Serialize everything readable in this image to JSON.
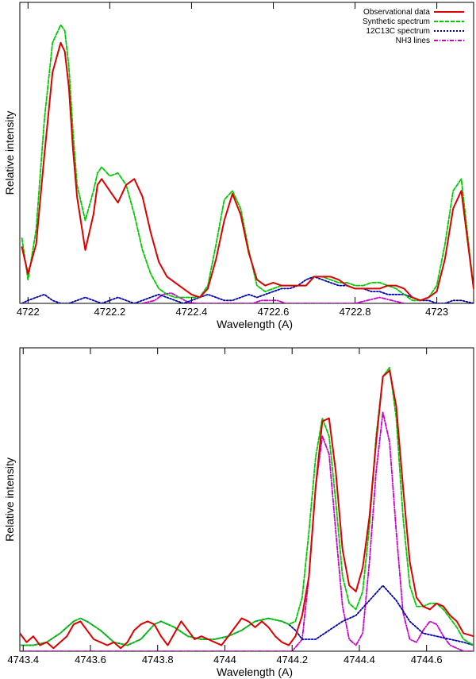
{
  "chart_data": [
    {
      "type": "line",
      "xlabel": "Wavelength (A)",
      "ylabel": "Relative intensity",
      "xlim": [
        4721.98,
        4723.09
      ],
      "ylim": [
        0,
        1.0
      ],
      "grid": false,
      "legend_position": "top-right",
      "xticks": [
        4722,
        4722.2,
        4722.4,
        4722.6,
        4722.8,
        4723
      ],
      "xtick_labels": [
        "4722",
        "4722.2",
        "4722.4",
        "4722.6",
        "4722.8",
        "4723"
      ],
      "legend": [
        "Observational data",
        "Synthetic spectrum",
        "12C13C spectrum",
        "NH3 lines"
      ],
      "series": [
        {
          "name": "Observational data",
          "color": "#dd0000",
          "dash": "solid",
          "x": [
            4721.985,
            4722.0,
            4722.02,
            4722.04,
            4722.06,
            4722.08,
            4722.09,
            4722.1,
            4722.11,
            4722.12,
            4722.14,
            4722.16,
            4722.17,
            4722.18,
            4722.2,
            4722.22,
            4722.24,
            4722.26,
            4722.28,
            4722.3,
            4722.32,
            4722.34,
            4722.36,
            4722.38,
            4722.4,
            4722.42,
            4722.44,
            4722.46,
            4722.48,
            4722.5,
            4722.52,
            4722.54,
            4722.56,
            4722.58,
            4722.6,
            4722.62,
            4722.64,
            4722.66,
            4722.68,
            4722.7,
            4722.72,
            4722.74,
            4722.76,
            4722.78,
            4722.8,
            4722.82,
            4722.84,
            4722.86,
            4722.88,
            4722.9,
            4722.92,
            4722.94,
            4722.96,
            4722.98,
            4723.0,
            4723.02,
            4723.04,
            4723.06,
            4723.09
          ],
          "y": [
            0.19,
            0.1,
            0.2,
            0.5,
            0.78,
            0.88,
            0.85,
            0.73,
            0.52,
            0.36,
            0.18,
            0.3,
            0.4,
            0.42,
            0.38,
            0.34,
            0.4,
            0.42,
            0.36,
            0.24,
            0.14,
            0.09,
            0.07,
            0.05,
            0.03,
            0.02,
            0.05,
            0.15,
            0.28,
            0.37,
            0.3,
            0.17,
            0.08,
            0.06,
            0.07,
            0.06,
            0.06,
            0.06,
            0.06,
            0.09,
            0.09,
            0.09,
            0.08,
            0.06,
            0.05,
            0.05,
            0.05,
            0.05,
            0.06,
            0.06,
            0.05,
            0.02,
            0.01,
            0.02,
            0.04,
            0.15,
            0.32,
            0.38,
            0.05
          ]
        },
        {
          "name": "Synthetic spectrum",
          "color": "#00cc00",
          "dash": "dashed",
          "x": [
            4721.985,
            4722.0,
            4722.02,
            4722.04,
            4722.06,
            4722.08,
            4722.09,
            4722.1,
            4722.11,
            4722.12,
            4722.14,
            4722.16,
            4722.17,
            4722.18,
            4722.2,
            4722.22,
            4722.24,
            4722.26,
            4722.28,
            4722.3,
            4722.32,
            4722.34,
            4722.36,
            4722.38,
            4722.4,
            4722.42,
            4722.44,
            4722.46,
            4722.48,
            4722.5,
            4722.52,
            4722.54,
            4722.56,
            4722.58,
            4722.6,
            4722.62,
            4722.64,
            4722.66,
            4722.68,
            4722.7,
            4722.72,
            4722.74,
            4722.76,
            4722.78,
            4722.8,
            4722.82,
            4722.84,
            4722.86,
            4722.88,
            4722.9,
            4722.92,
            4722.94,
            4722.96,
            4722.98,
            4723.0,
            4723.02,
            4723.04,
            4723.06,
            4723.09
          ],
          "y": [
            0.22,
            0.08,
            0.25,
            0.62,
            0.88,
            0.94,
            0.92,
            0.8,
            0.58,
            0.4,
            0.28,
            0.38,
            0.44,
            0.46,
            0.43,
            0.44,
            0.4,
            0.3,
            0.18,
            0.1,
            0.05,
            0.03,
            0.02,
            0.02,
            0.02,
            0.02,
            0.06,
            0.2,
            0.35,
            0.38,
            0.32,
            0.18,
            0.06,
            0.04,
            0.05,
            0.06,
            0.06,
            0.06,
            0.06,
            0.09,
            0.09,
            0.08,
            0.07,
            0.07,
            0.06,
            0.06,
            0.07,
            0.07,
            0.06,
            0.05,
            0.03,
            0.01,
            0.01,
            0.02,
            0.06,
            0.2,
            0.38,
            0.42,
            0.05
          ]
        },
        {
          "name": "12C13C spectrum",
          "color": "#0000aa",
          "dash": "dotted",
          "x": [
            4721.985,
            4722.0,
            4722.02,
            4722.04,
            4722.06,
            4722.08,
            4722.1,
            4722.12,
            4722.14,
            4722.16,
            4722.18,
            4722.2,
            4722.22,
            4722.24,
            4722.26,
            4722.28,
            4722.3,
            4722.32,
            4722.34,
            4722.36,
            4722.38,
            4722.4,
            4722.42,
            4722.44,
            4722.46,
            4722.48,
            4722.5,
            4722.52,
            4722.54,
            4722.56,
            4722.58,
            4722.6,
            4722.62,
            4722.64,
            4722.66,
            4722.68,
            4722.7,
            4722.72,
            4722.74,
            4722.76,
            4722.78,
            4722.8,
            4722.82,
            4722.84,
            4722.86,
            4722.88,
            4722.9,
            4722.92,
            4722.94,
            4722.96,
            4722.98,
            4723.0,
            4723.02,
            4723.04,
            4723.06,
            4723.09
          ],
          "y": [
            0.0,
            0.01,
            0.02,
            0.03,
            0.01,
            0.0,
            0.0,
            0.01,
            0.02,
            0.01,
            0.0,
            0.01,
            0.02,
            0.01,
            0.0,
            0.01,
            0.02,
            0.03,
            0.02,
            0.01,
            0.0,
            0.01,
            0.02,
            0.03,
            0.02,
            0.01,
            0.01,
            0.02,
            0.03,
            0.02,
            0.03,
            0.04,
            0.05,
            0.05,
            0.06,
            0.08,
            0.09,
            0.08,
            0.07,
            0.06,
            0.06,
            0.05,
            0.05,
            0.04,
            0.04,
            0.03,
            0.03,
            0.03,
            0.02,
            0.01,
            0.01,
            0.0,
            0.0,
            0.01,
            0.01,
            0.0
          ]
        },
        {
          "name": "NH3 lines",
          "color": "#cc00cc",
          "dash": "dashdot",
          "x": [
            4722.28,
            4722.31,
            4722.33,
            4722.35,
            4722.37,
            4722.39,
            4722.41,
            4722.55,
            4722.57,
            4722.59,
            4722.61,
            4722.63,
            4722.8,
            4722.83,
            4722.86,
            4722.89,
            4722.92
          ],
          "y": [
            0.0,
            0.01,
            0.03,
            0.035,
            0.02,
            0.005,
            0.0,
            0.0,
            0.01,
            0.01,
            0.01,
            0.0,
            0.0,
            0.01,
            0.02,
            0.01,
            0.0
          ]
        }
      ]
    },
    {
      "type": "line",
      "xlabel": "Wavelength (A)",
      "ylabel": "Relative intensity",
      "xlim": [
        4743.39,
        4744.74
      ],
      "ylim": [
        0,
        1.0
      ],
      "grid": false,
      "xticks": [
        4743.4,
        4743.6,
        4743.8,
        4744,
        4744.2,
        4744.4,
        4744.6
      ],
      "xtick_labels": [
        "4743.4",
        "4743.6",
        "4743.8",
        "4744",
        "4744.2",
        "4744.4",
        "4744.6"
      ],
      "series": [
        {
          "name": "Observational data",
          "color": "#dd0000",
          "dash": "solid",
          "x": [
            4743.39,
            4743.41,
            4743.43,
            4743.45,
            4743.47,
            4743.49,
            4743.51,
            4743.53,
            4743.55,
            4743.57,
            4743.59,
            4743.61,
            4743.63,
            4743.65,
            4743.67,
            4743.69,
            4743.71,
            4743.73,
            4743.75,
            4743.77,
            4743.79,
            4743.81,
            4743.83,
            4743.85,
            4743.87,
            4743.89,
            4743.91,
            4743.93,
            4743.95,
            4743.97,
            4743.99,
            4744.01,
            4744.03,
            4744.05,
            4744.07,
            4744.09,
            4744.11,
            4744.13,
            4744.15,
            4744.17,
            4744.19,
            4744.21,
            4744.23,
            4744.25,
            4744.27,
            4744.29,
            4744.31,
            4744.33,
            4744.35,
            4744.37,
            4744.39,
            4744.41,
            4744.43,
            4744.45,
            4744.47,
            4744.49,
            4744.51,
            4744.53,
            4744.55,
            4744.57,
            4744.59,
            4744.61,
            4744.63,
            4744.65,
            4744.67,
            4744.69,
            4744.71,
            4744.74
          ],
          "y": [
            0.06,
            0.03,
            0.05,
            0.02,
            0.03,
            0.01,
            0.03,
            0.05,
            0.09,
            0.1,
            0.07,
            0.04,
            0.03,
            0.02,
            0.03,
            0.01,
            0.03,
            0.07,
            0.09,
            0.1,
            0.09,
            0.05,
            0.02,
            0.06,
            0.1,
            0.07,
            0.04,
            0.05,
            0.04,
            0.03,
            0.02,
            0.05,
            0.08,
            0.11,
            0.1,
            0.08,
            0.1,
            0.08,
            0.05,
            0.03,
            0.02,
            0.05,
            0.12,
            0.25,
            0.55,
            0.77,
            0.78,
            0.6,
            0.34,
            0.22,
            0.2,
            0.28,
            0.45,
            0.7,
            0.92,
            0.94,
            0.82,
            0.55,
            0.3,
            0.18,
            0.15,
            0.14,
            0.16,
            0.15,
            0.12,
            0.1,
            0.06,
            0.05
          ]
        },
        {
          "name": "Synthetic spectrum",
          "color": "#00cc00",
          "dash": "dashed",
          "x": [
            4743.39,
            4743.43,
            4743.47,
            4743.51,
            4743.55,
            4743.57,
            4743.59,
            4743.63,
            4743.67,
            4743.71,
            4743.75,
            4743.79,
            4743.81,
            4743.85,
            4743.89,
            4743.93,
            4743.97,
            4744.01,
            4744.05,
            4744.09,
            4744.13,
            4744.17,
            4744.19,
            4744.21,
            4744.23,
            4744.25,
            4744.27,
            4744.29,
            4744.31,
            4744.33,
            4744.35,
            4744.37,
            4744.39,
            4744.41,
            4744.43,
            4744.45,
            4744.47,
            4744.49,
            4744.51,
            4744.53,
            4744.55,
            4744.57,
            4744.59,
            4744.61,
            4744.63,
            4744.65,
            4744.67,
            4744.69,
            4744.71,
            4744.74
          ],
          "y": [
            0.02,
            0.02,
            0.03,
            0.06,
            0.1,
            0.11,
            0.1,
            0.07,
            0.03,
            0.02,
            0.04,
            0.09,
            0.1,
            0.08,
            0.05,
            0.04,
            0.04,
            0.05,
            0.07,
            0.1,
            0.11,
            0.1,
            0.09,
            0.1,
            0.18,
            0.4,
            0.65,
            0.78,
            0.72,
            0.5,
            0.25,
            0.16,
            0.14,
            0.2,
            0.42,
            0.72,
            0.92,
            0.95,
            0.78,
            0.45,
            0.22,
            0.15,
            0.15,
            0.16,
            0.16,
            0.14,
            0.11,
            0.08,
            0.04,
            0.02
          ]
        },
        {
          "name": "12C13C spectrum",
          "color": "#0000aa",
          "dash": "dotted",
          "x": [
            4743.39,
            4743.43,
            4743.47,
            4743.51,
            4743.55,
            4743.57,
            4743.59,
            4743.63,
            4743.67,
            4743.71,
            4743.75,
            4743.79,
            4743.81,
            4743.85,
            4743.89,
            4743.93,
            4743.97,
            4744.01,
            4744.05,
            4744.09,
            4744.13,
            4744.17,
            4744.19,
            4744.21,
            4744.23,
            4744.27,
            4744.31,
            4744.35,
            4744.39,
            4744.43,
            4744.47,
            4744.51,
            4744.55,
            4744.59,
            4744.63,
            4744.67,
            4744.71,
            4744.74
          ],
          "y": [
            0.02,
            0.02,
            0.03,
            0.06,
            0.1,
            0.11,
            0.1,
            0.07,
            0.03,
            0.02,
            0.04,
            0.09,
            0.1,
            0.08,
            0.05,
            0.04,
            0.04,
            0.05,
            0.07,
            0.1,
            0.11,
            0.1,
            0.09,
            0.07,
            0.04,
            0.04,
            0.07,
            0.1,
            0.12,
            0.17,
            0.22,
            0.17,
            0.1,
            0.06,
            0.05,
            0.04,
            0.03,
            0.02
          ]
        },
        {
          "name": "NH3 lines",
          "color": "#cc00cc",
          "dash": "dashdot",
          "x": [
            4743.39,
            4744.15,
            4744.2,
            4744.23,
            4744.25,
            4744.27,
            4744.29,
            4744.31,
            4744.33,
            4744.35,
            4744.37,
            4744.39,
            4744.41,
            4744.43,
            4744.45,
            4744.47,
            4744.49,
            4744.51,
            4744.53,
            4744.55,
            4744.57,
            4744.59,
            4744.61,
            4744.63,
            4744.65,
            4744.67,
            4744.69,
            4744.71,
            4744.74
          ],
          "y": [
            0.0,
            0.0,
            0.0,
            0.04,
            0.25,
            0.55,
            0.72,
            0.66,
            0.4,
            0.15,
            0.04,
            0.02,
            0.06,
            0.3,
            0.6,
            0.8,
            0.7,
            0.4,
            0.13,
            0.04,
            0.03,
            0.07,
            0.1,
            0.09,
            0.05,
            0.02,
            0.01,
            0.0,
            0.0
          ]
        }
      ]
    }
  ]
}
